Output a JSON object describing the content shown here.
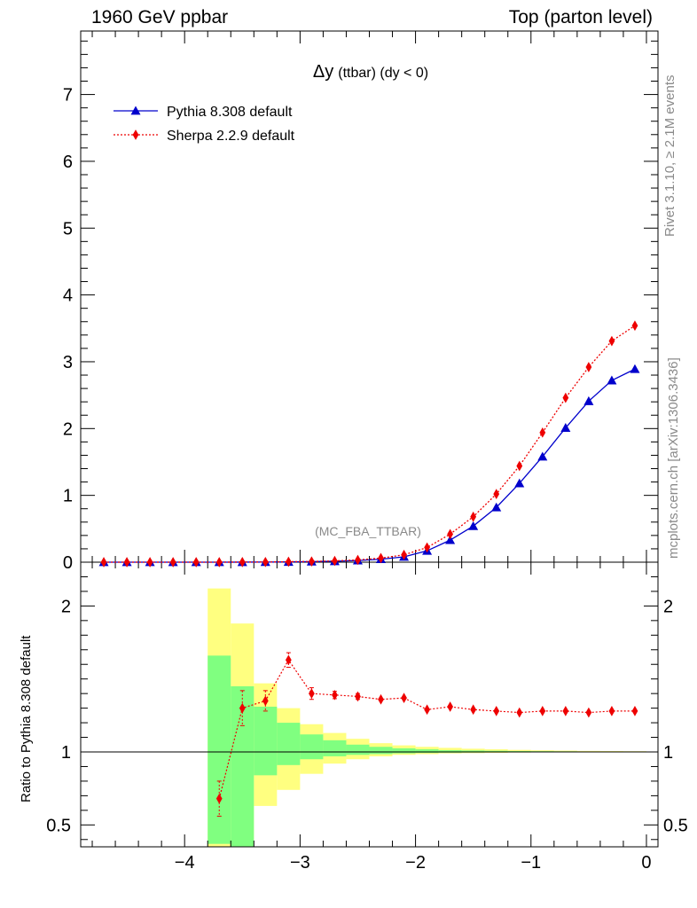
{
  "header": {
    "left": "1960 GeV ppbar",
    "right": "Top (parton level)"
  },
  "side_labels": {
    "rivet": "Rivet 3.1.10, ≥ 2.1M events",
    "mcplots": "mcplots.cern.ch [arXiv:1306.3436]"
  },
  "chart_data": {
    "type": "line",
    "title_main": "Δy",
    "title_sub": "(ttbar) (dy < 0)",
    "analysis_tag": "(MC_FBA_TTBAR)",
    "x": [
      -4.7,
      -4.5,
      -4.3,
      -4.1,
      -3.9,
      -3.7,
      -3.5,
      -3.3,
      -3.1,
      -2.9,
      -2.7,
      -2.5,
      -2.3,
      -2.1,
      -1.9,
      -1.7,
      -1.5,
      -1.3,
      -1.1,
      -0.9,
      -0.7,
      -0.5,
      -0.3,
      -0.1
    ],
    "xlim": [
      -4.9,
      0.1
    ],
    "main_panel": {
      "ylim": [
        0,
        7.95
      ],
      "yticks": [
        "1",
        "2",
        "3",
        "4",
        "5",
        "6",
        "7"
      ],
      "series": [
        {
          "name": "Pythia 8.308 default",
          "color": "#0000cc",
          "marker": "triangle",
          "style": "solid",
          "values": [
            0,
            0,
            0,
            0,
            0,
            0.0003,
            0.001,
            0.002,
            0.004,
            0.008,
            0.014,
            0.025,
            0.045,
            0.08,
            0.17,
            0.33,
            0.54,
            0.82,
            1.18,
            1.58,
            2.01,
            2.41,
            2.72,
            2.89
          ]
        },
        {
          "name": "Sherpa 2.2.9 default",
          "color": "#ee0000",
          "marker": "diamond",
          "style": "dotted",
          "values": [
            0,
            0,
            0,
            0,
            0,
            0.0002,
            0.0013,
            0.0027,
            0.0065,
            0.011,
            0.019,
            0.034,
            0.061,
            0.11,
            0.22,
            0.42,
            0.68,
            1.02,
            1.44,
            1.94,
            2.46,
            2.92,
            3.31,
            3.54
          ]
        }
      ]
    },
    "ratio_panel": {
      "ylabel": "Ratio to Pythia 8.308 default",
      "ylim": [
        0.35,
        2.3
      ],
      "yticks": [
        "0.5",
        "1",
        "2"
      ],
      "reference": 1,
      "band_edges": [
        -3.8,
        -3.6,
        -3.4,
        -3.2,
        -3.0,
        -2.8,
        -2.6,
        -2.4,
        -2.2,
        -2.0,
        -1.8,
        -1.6,
        -1.4,
        -1.2,
        -1.0,
        -0.8,
        -0.6,
        -0.4,
        -0.2,
        0.0
      ],
      "green_band": [
        [
          0.37,
          1.66
        ],
        [
          0.35,
          1.45
        ],
        [
          0.84,
          1.31
        ],
        [
          0.91,
          1.2
        ],
        [
          0.95,
          1.12
        ],
        [
          0.97,
          1.08
        ],
        [
          0.98,
          1.05
        ],
        [
          0.985,
          1.035
        ],
        [
          0.99,
          1.025
        ],
        [
          0.993,
          1.018
        ],
        [
          0.995,
          1.012
        ],
        [
          0.996,
          1.01
        ],
        [
          0.997,
          1.008
        ],
        [
          0.998,
          1.006
        ],
        [
          0.998,
          1.005
        ],
        [
          0.999,
          1.004
        ],
        [
          0.999,
          1.003
        ],
        [
          0.999,
          1.003
        ],
        [
          0.999,
          1.002
        ]
      ],
      "yellow_band": [
        [
          0.35,
          2.12
        ],
        [
          0.35,
          1.88
        ],
        [
          0.63,
          1.47
        ],
        [
          0.74,
          1.3
        ],
        [
          0.85,
          1.19
        ],
        [
          0.92,
          1.13
        ],
        [
          0.95,
          1.09
        ],
        [
          0.97,
          1.06
        ],
        [
          0.98,
          1.045
        ],
        [
          0.985,
          1.035
        ],
        [
          0.99,
          1.028
        ],
        [
          0.992,
          1.022
        ],
        [
          0.994,
          1.018
        ],
        [
          0.996,
          1.014
        ],
        [
          0.997,
          1.011
        ],
        [
          0.998,
          1.009
        ],
        [
          0.998,
          1.007
        ],
        [
          0.999,
          1.006
        ],
        [
          0.999,
          1.005
        ]
      ],
      "sherpa_ratio": {
        "x": [
          -3.7,
          -3.5,
          -3.3,
          -3.1,
          -2.9,
          -2.7,
          -2.5,
          -2.3,
          -2.1,
          -1.9,
          -1.7,
          -1.5,
          -1.3,
          -1.1,
          -0.9,
          -0.7,
          -0.5,
          -0.3,
          -0.1
        ],
        "values": [
          0.68,
          1.3,
          1.35,
          1.63,
          1.4,
          1.39,
          1.38,
          1.36,
          1.37,
          1.29,
          1.31,
          1.29,
          1.28,
          1.27,
          1.28,
          1.28,
          1.27,
          1.28,
          1.28
        ],
        "err": [
          0.12,
          0.12,
          0.07,
          0.05,
          0.04,
          0.025,
          0.02,
          0.015,
          0.012,
          0.01,
          0.01,
          0.008,
          0.008,
          0.007,
          0.006,
          0.006,
          0.006,
          0.006,
          0.006
        ],
        "color": "#ee0000"
      }
    },
    "xticks": [
      "−4",
      "−3",
      "−2",
      "−1",
      "0"
    ]
  }
}
